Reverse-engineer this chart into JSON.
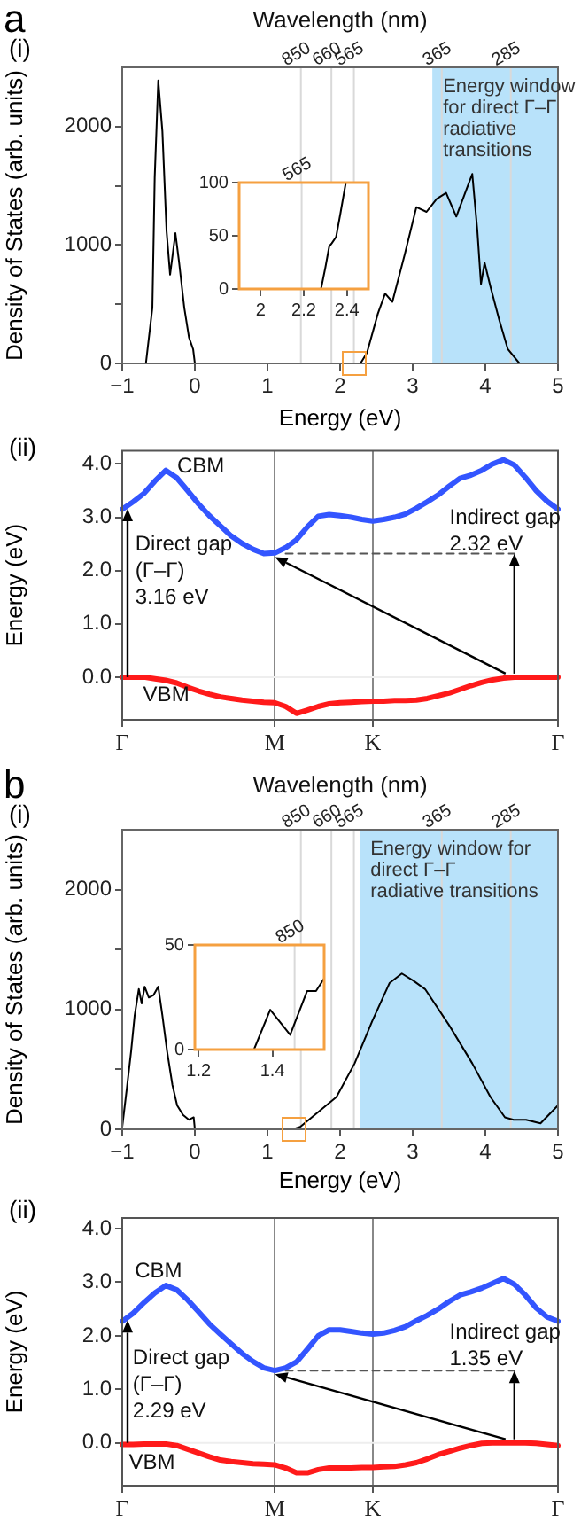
{
  "chart_data": [
    {
      "type": "line",
      "title": "a",
      "subtitle": "(i)",
      "xlabel": "Energy (eV)",
      "ylabel": "Density of States (arb. units)",
      "marker": "none",
      "xlim": [
        -1,
        5
      ],
      "xticks": [
        {
          "value": -1,
          "label": "−1"
        },
        0,
        1,
        2,
        3,
        4,
        5
      ],
      "ylim": [
        0,
        2500
      ],
      "yticks": [
        0,
        {
          "value": 500,
          "label": null
        },
        1000,
        {
          "value": 1500,
          "label": null
        },
        2000
      ],
      "series": [
        {
          "color": "#000000",
          "x": [
            -1,
            -0.674,
            -0.585,
            -0.553,
            -0.504,
            -0.447,
            -0.39,
            -0.341,
            -0.268,
            -0.22,
            -0.146,
            -0.081,
            -0.024,
            0,
            2.28,
            2.32,
            2.37,
            2.52,
            2.62,
            2.72,
            2.89,
            3.05,
            3.19,
            3.33,
            3.46,
            3.6,
            3.74,
            3.82,
            3.89,
            3.94,
            3.99,
            4.07,
            4.19,
            4.31,
            4.47,
            5
          ],
          "values": [
            0,
            0,
            470,
            1570,
            2390,
            1960,
            1120,
            750,
            1100,
            870,
            470,
            220,
            120,
            0,
            0,
            40,
            90,
            420,
            590,
            520,
            920,
            1320,
            1280,
            1390,
            1440,
            1240,
            1470,
            1600,
            1120,
            670,
            850,
            650,
            370,
            120,
            0,
            0
          ]
        }
      ],
      "bands": [
        {
          "axis": "x",
          "from": 3.27,
          "to": 5,
          "label": "Energy window\nfor direct Γ–Γ\nradiative\ntransitions",
          "color": "#b8e2fa"
        }
      ],
      "ref_lines": [
        {
          "axis": "x",
          "value": 1.46,
          "color": "#d9d9d9"
        },
        {
          "axis": "x",
          "value": 1.88,
          "color": "#d9d9d9"
        },
        {
          "axis": "x",
          "value": 2.19,
          "color": "#d9d9d9"
        },
        {
          "axis": "x",
          "value": 3.4,
          "color": "#d9d9d9"
        },
        {
          "axis": "x",
          "value": 4.35,
          "color": "#d9d9d9"
        }
      ],
      "annotations": [
        {
          "text": "850",
          "x": 1.46,
          "y": 2500
        },
        {
          "text": "660",
          "x": 1.88,
          "y": 2500
        },
        {
          "text": "565",
          "x": 2.19,
          "y": 2500
        },
        {
          "text": "365",
          "x": 3.4,
          "y": 2500
        },
        {
          "text": "285",
          "x": 4.35,
          "y": 2500
        },
        "Wavelength (nm)"
      ]
    },
    {
      "type": "line",
      "marker": "none",
      "xlim": [
        1.9,
        2.5
      ],
      "xticks": [
        2.0,
        2.2,
        2.4
      ],
      "ylim": [
        0,
        100
      ],
      "yticks": [
        0,
        50,
        100
      ],
      "series": [
        {
          "color": "#000000",
          "x": [
            1.9,
            2.28,
            2.3,
            2.318,
            2.33,
            2.35,
            2.37,
            2.395
          ],
          "values": [
            0,
            0,
            20,
            40,
            43,
            49,
            71,
            100
          ]
        }
      ],
      "ref_lines": [
        {
          "axis": "x",
          "value": 2.19,
          "color": "#d9d9d9"
        }
      ],
      "annotations": [
        {
          "text": "565",
          "x": 2.19,
          "y": 100
        }
      ]
    },
    {
      "type": "line",
      "subtitle": "(ii)",
      "ylabel": "Energy (eV)",
      "marker": "none",
      "grid": "x",
      "categories": [
        "Γ",
        null,
        null,
        null,
        null,
        null,
        null,
        null,
        null,
        null,
        null,
        null,
        null,
        null,
        "M",
        null,
        null,
        null,
        null,
        null,
        null,
        null,
        null,
        "K",
        null,
        null,
        null,
        null,
        null,
        null,
        null,
        null,
        null,
        null,
        null,
        null,
        null,
        null,
        null,
        null,
        "Γ"
      ],
      "ylim": [
        -0.8,
        4.25
      ],
      "yticks": [
        {
          "value": 0,
          "label": "0.0"
        },
        {
          "value": 1,
          "label": "1.0"
        },
        {
          "value": 2,
          "label": "2.0"
        },
        {
          "value": 3,
          "label": "3.0"
        },
        {
          "value": 4,
          "label": "4.0"
        }
      ],
      "series": [
        {
          "color": "#3355ff",
          "values": [
            3.15,
            3.29,
            3.45,
            3.68,
            3.88,
            3.74,
            3.5,
            3.25,
            3.03,
            2.84,
            2.65,
            2.51,
            2.4,
            2.32,
            2.33,
            2.43,
            2.58,
            2.82,
            3.02,
            3.05,
            3.03,
            3.0,
            2.96,
            2.93,
            2.96,
            3.0,
            3.06,
            3.17,
            3.29,
            3.42,
            3.58,
            3.73,
            3.79,
            3.88,
            4.0,
            4.08,
            3.98,
            3.75,
            3.5,
            3.3,
            3.15
          ]
        },
        {
          "color": "#ff1a1a",
          "values": [
            0,
            0,
            0,
            -0.03,
            -0.06,
            -0.11,
            -0.19,
            -0.26,
            -0.32,
            -0.37,
            -0.4,
            -0.43,
            -0.45,
            -0.47,
            -0.48,
            -0.55,
            -0.68,
            -0.62,
            -0.55,
            -0.5,
            -0.48,
            -0.47,
            -0.46,
            -0.45,
            -0.45,
            -0.44,
            -0.44,
            -0.43,
            -0.4,
            -0.35,
            -0.3,
            -0.23,
            -0.16,
            -0.1,
            -0.05,
            -0.02,
            0,
            0,
            0,
            0,
            0
          ]
        },
        {
          "color": "#555555",
          "line_style": "dashed",
          "values": [
            null,
            null,
            null,
            null,
            null,
            null,
            null,
            null,
            null,
            null,
            null,
            null,
            null,
            null,
            null,
            2.32,
            2.32,
            2.32,
            2.32,
            2.32,
            2.32,
            2.32,
            2.32,
            2.32,
            2.32,
            2.32,
            2.32,
            2.32,
            2.32,
            2.32,
            2.32,
            2.32,
            2.32,
            2.32,
            2.32,
            2.32,
            2.32,
            null,
            null,
            null,
            null
          ]
        }
      ],
      "ref_lines": [
        {
          "axis": "y",
          "value": 0,
          "color": "#eeeeee"
        }
      ],
      "annotations": [
        "CBM",
        "VBM",
        {
          "text": "Direct gap\n(Γ–Γ)\n3.16 eV",
          "x": "Γ",
          "y": 3.16
        },
        {
          "text": "Indirect gap\n2.32 eV",
          "y": 2.32
        }
      ]
    },
    {
      "type": "line",
      "title": "b",
      "subtitle": "(i)",
      "xlabel": "Energy (eV)",
      "ylabel": "Density of States (arb. units)",
      "marker": "none",
      "xlim": [
        -1,
        5
      ],
      "xticks": [
        {
          "value": -1,
          "label": "−1"
        },
        0,
        1,
        2,
        3,
        4,
        5
      ],
      "ylim": [
        0,
        2500
      ],
      "yticks": [
        0,
        {
          "value": 500,
          "label": null
        },
        1000,
        {
          "value": 1500,
          "label": null
        },
        2000
      ],
      "series": [
        {
          "color": "#000000",
          "x": [
            -1,
            -0.935,
            -0.878,
            -0.829,
            -0.772,
            -0.732,
            -0.691,
            -0.634,
            -0.569,
            -0.504,
            -0.447,
            -0.382,
            -0.309,
            -0.244,
            -0.163,
            -0.081,
            -0.016,
            0,
            1.35,
            1.45,
            1.71,
            1.95,
            2.2,
            2.44,
            2.68,
            2.85,
            3.01,
            3.17,
            3.5,
            3.82,
            4.07,
            4.27,
            4.39,
            4.56,
            4.76,
            5
          ],
          "values": [
            20,
            350,
            650,
            950,
            1170,
            1050,
            1190,
            1100,
            1120,
            1190,
            950,
            650,
            370,
            200,
            120,
            80,
            100,
            0,
            0,
            20,
            150,
            270,
            550,
            900,
            1220,
            1300,
            1240,
            1170,
            870,
            550,
            270,
            100,
            80,
            80,
            50,
            200
          ]
        }
      ],
      "bands": [
        {
          "axis": "x",
          "from": 2.27,
          "to": 5,
          "label": "Energy window for\ndirect Γ–Γ\nradiative transitions",
          "color": "#b8e2fa"
        }
      ],
      "ref_lines": [
        {
          "axis": "x",
          "value": 1.46,
          "color": "#d9d9d9"
        },
        {
          "axis": "x",
          "value": 1.88,
          "color": "#d9d9d9"
        },
        {
          "axis": "x",
          "value": 2.19,
          "color": "#d9d9d9"
        },
        {
          "axis": "x",
          "value": 3.4,
          "color": "#d9d9d9"
        },
        {
          "axis": "x",
          "value": 4.35,
          "color": "#d9d9d9"
        }
      ],
      "annotations": [
        {
          "text": "850",
          "x": 1.46,
          "y": 2500
        },
        {
          "text": "660",
          "x": 1.88,
          "y": 2500
        },
        {
          "text": "565",
          "x": 2.19,
          "y": 2500
        },
        {
          "text": "365",
          "x": 3.4,
          "y": 2500
        },
        {
          "text": "285",
          "x": 4.35,
          "y": 2500
        },
        "Wavelength (nm)"
      ]
    },
    {
      "type": "line",
      "marker": "none",
      "xlim": [
        1.19,
        1.54
      ],
      "xticks": [
        1.2,
        1.4
      ],
      "ylim": [
        0,
        50
      ],
      "yticks": [
        0,
        50
      ],
      "series": [
        {
          "color": "#000000",
          "x": [
            1.19,
            1.35,
            1.394,
            1.448,
            1.494,
            1.518,
            1.54
          ],
          "values": [
            0,
            0,
            19,
            7,
            28,
            28,
            34
          ]
        }
      ],
      "ref_lines": [
        {
          "axis": "x",
          "value": 1.46,
          "color": "#d9d9d9"
        }
      ],
      "annotations": [
        {
          "text": "850",
          "x": 1.46,
          "y": 50
        }
      ]
    },
    {
      "type": "line",
      "subtitle": "(ii)",
      "ylabel": "Energy (eV)",
      "marker": "none",
      "grid": "x",
      "categories": [
        "Γ",
        null,
        null,
        null,
        null,
        null,
        null,
        null,
        null,
        null,
        null,
        null,
        null,
        null,
        "M",
        null,
        null,
        null,
        null,
        null,
        null,
        null,
        null,
        "K",
        null,
        null,
        null,
        null,
        null,
        null,
        null,
        null,
        null,
        null,
        null,
        null,
        null,
        null,
        null,
        null,
        "Γ"
      ],
      "ylim": [
        -0.8,
        4.2
      ],
      "yticks": [
        {
          "value": 0,
          "label": "0.0"
        },
        {
          "value": 1,
          "label": "1.0"
        },
        {
          "value": 2,
          "label": "2.0"
        },
        {
          "value": 3,
          "label": "3.0"
        },
        {
          "value": 4,
          "label": "4.0"
        }
      ],
      "series": [
        {
          "color": "#3355ff",
          "values": [
            2.27,
            2.42,
            2.62,
            2.8,
            2.94,
            2.86,
            2.67,
            2.45,
            2.22,
            2.03,
            1.85,
            1.67,
            1.52,
            1.4,
            1.35,
            1.4,
            1.51,
            1.75,
            2.0,
            2.11,
            2.11,
            2.08,
            2.05,
            2.03,
            2.05,
            2.1,
            2.17,
            2.28,
            2.38,
            2.5,
            2.64,
            2.76,
            2.82,
            2.89,
            2.98,
            3.07,
            2.96,
            2.76,
            2.52,
            2.35,
            2.27
          ]
        },
        {
          "color": "#ff1a1a",
          "values": [
            -0.03,
            -0.03,
            -0.02,
            -0.02,
            -0.02,
            -0.05,
            -0.12,
            -0.19,
            -0.26,
            -0.32,
            -0.35,
            -0.37,
            -0.39,
            -0.4,
            -0.41,
            -0.47,
            -0.56,
            -0.56,
            -0.5,
            -0.47,
            -0.47,
            -0.47,
            -0.46,
            -0.46,
            -0.45,
            -0.44,
            -0.41,
            -0.37,
            -0.3,
            -0.22,
            -0.16,
            -0.1,
            -0.05,
            -0.01,
            0,
            0,
            0,
            0,
            -0.01,
            -0.03,
            -0.05
          ]
        },
        {
          "color": "#555555",
          "line_style": "dashed",
          "values": [
            null,
            null,
            null,
            null,
            null,
            null,
            null,
            null,
            null,
            null,
            null,
            null,
            null,
            null,
            null,
            1.35,
            1.35,
            1.35,
            1.35,
            1.35,
            1.35,
            1.35,
            1.35,
            1.35,
            1.35,
            1.35,
            1.35,
            1.35,
            1.35,
            1.35,
            1.35,
            1.35,
            1.35,
            1.35,
            1.35,
            1.35,
            1.35,
            null,
            null,
            null,
            null
          ]
        }
      ],
      "ref_lines": [
        {
          "axis": "y",
          "value": 0,
          "color": "#eeeeee"
        }
      ],
      "annotations": [
        "CBM",
        "VBM",
        {
          "text": "Direct gap\n(Γ–Γ)\n2.29 eV",
          "x": "Γ",
          "y": 2.29
        },
        {
          "text": "Indirect gap\n1.35 eV",
          "y": 1.35
        }
      ]
    }
  ]
}
